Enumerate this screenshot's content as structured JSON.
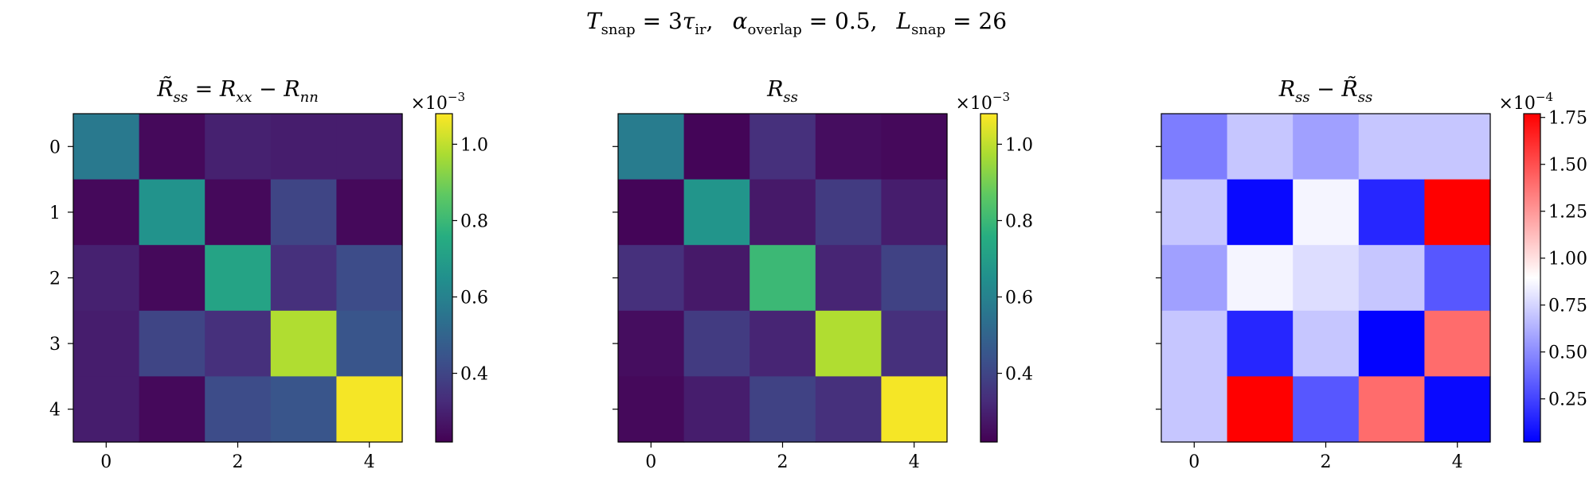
{
  "suptitle": {
    "t_var": "T",
    "t_sub": "snap",
    "t_rhs": " = 3",
    "tau_var": "τ",
    "tau_sub": "ir",
    "t_sep": ",",
    "alpha_var": "α",
    "alpha_sub": "overlap",
    "alpha_rhs": " = 0.5,",
    "l_var": "L",
    "l_sub": "snap",
    "l_rhs": " = 26"
  },
  "chart_data": [
    {
      "type": "heatmap",
      "title_parts": [
        {
          "text": "R̃",
          "style": "var"
        },
        {
          "text": "ss",
          "style": "sub"
        },
        {
          "text": " = ",
          "style": "op"
        },
        {
          "text": "R",
          "style": "var"
        },
        {
          "text": "xx",
          "style": "sub"
        },
        {
          "text": " − ",
          "style": "op"
        },
        {
          "text": "R",
          "style": "var"
        },
        {
          "text": "nn",
          "style": "sub"
        }
      ],
      "x_ticks": [
        0,
        2,
        4
      ],
      "y_ticks": [
        0,
        1,
        2,
        3,
        4
      ],
      "colormap": "viridis",
      "vmin": 0.22,
      "vmax": 1.08,
      "exponent_label": {
        "base": "×10",
        "exp": "−3"
      },
      "colorbar_ticks": [
        0.4,
        0.6,
        0.8,
        1.0
      ],
      "colorbar_tick_labels": [
        "0.4",
        "0.6",
        "0.8",
        "1.0"
      ],
      "values": [
        [
          0.57,
          0.24,
          0.3,
          0.29,
          0.29
        ],
        [
          0.24,
          0.66,
          0.24,
          0.4,
          0.24
        ],
        [
          0.3,
          0.24,
          0.72,
          0.34,
          0.42
        ],
        [
          0.29,
          0.4,
          0.34,
          0.98,
          0.45
        ],
        [
          0.29,
          0.24,
          0.42,
          0.45,
          1.07
        ]
      ]
    },
    {
      "type": "heatmap",
      "title_parts": [
        {
          "text": "R",
          "style": "var"
        },
        {
          "text": "ss",
          "style": "sub"
        }
      ],
      "x_ticks": [
        0,
        2,
        4
      ],
      "y_ticks": [
        0,
        1,
        2,
        3,
        4
      ],
      "colormap": "viridis",
      "vmin": 0.22,
      "vmax": 1.08,
      "exponent_label": {
        "base": "×10",
        "exp": "−3"
      },
      "colorbar_ticks": [
        0.4,
        0.6,
        0.8,
        1.0
      ],
      "colorbar_tick_labels": [
        "0.4",
        "0.6",
        "0.8",
        "1.0"
      ],
      "values": [
        [
          0.58,
          0.23,
          0.34,
          0.25,
          0.24
        ],
        [
          0.23,
          0.67,
          0.28,
          0.37,
          0.29
        ],
        [
          0.34,
          0.28,
          0.8,
          0.31,
          0.39
        ],
        [
          0.25,
          0.37,
          0.31,
          0.98,
          0.34
        ],
        [
          0.24,
          0.29,
          0.39,
          0.34,
          1.07
        ]
      ]
    },
    {
      "type": "heatmap",
      "title_parts": [
        {
          "text": "R",
          "style": "var"
        },
        {
          "text": "ss",
          "style": "sub"
        },
        {
          "text": " − ",
          "style": "op"
        },
        {
          "text": "R̃",
          "style": "var"
        },
        {
          "text": "ss",
          "style": "sub"
        }
      ],
      "x_ticks": [
        0,
        2,
        4
      ],
      "y_ticks": [
        0,
        1,
        2,
        3,
        4
      ],
      "colormap": "bwr",
      "vmin": 0.02,
      "vmax": 1.77,
      "exponent_label": {
        "base": "×10",
        "exp": "−4"
      },
      "colorbar_ticks": [
        0.25,
        0.5,
        0.75,
        1.0,
        1.25,
        1.5,
        1.75
      ],
      "colorbar_tick_labels": [
        "0.25",
        "0.50",
        "0.75",
        "1.00",
        "1.25",
        "1.50",
        "1.75"
      ],
      "values": [
        [
          0.45,
          0.7,
          0.57,
          0.7,
          0.7
        ],
        [
          0.7,
          0.05,
          0.86,
          0.15,
          1.77
        ],
        [
          0.57,
          0.86,
          0.78,
          0.7,
          0.32
        ],
        [
          0.7,
          0.15,
          0.7,
          0.03,
          1.4
        ],
        [
          0.7,
          1.77,
          0.32,
          1.4,
          0.05
        ]
      ]
    }
  ]
}
